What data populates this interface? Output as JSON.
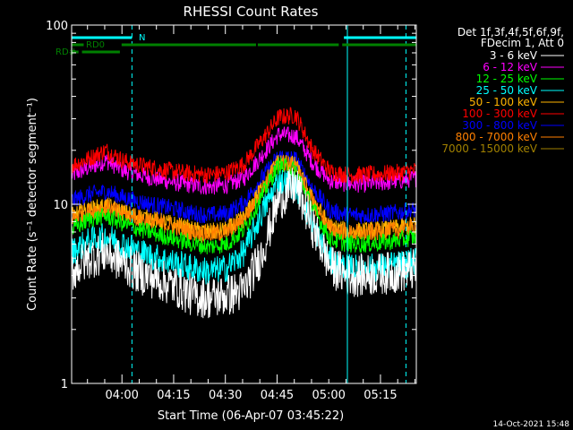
{
  "chart_data": {
    "type": "line",
    "title": "RHESSI Count Rates",
    "xlabel": "Start Time (06-Apr-07 03:45:22)",
    "ylabel": "Count Rate (s⁻¹ detector segment⁻¹)",
    "yscale": "log",
    "ylim": [
      1,
      100
    ],
    "xlim_minutes": [
      0,
      100
    ],
    "x_tick_labels": [
      "04:00",
      "04:15",
      "04:30",
      "04:45",
      "05:00",
      "05:15"
    ],
    "x_tick_minutes": [
      14.6,
      29.6,
      44.6,
      59.6,
      74.6,
      89.6
    ],
    "y_tick_labels": [
      "1",
      "10",
      "100"
    ],
    "y_tick_values": [
      1,
      10,
      100
    ],
    "legend": {
      "placement": "right",
      "header": [
        "Det 1f,3f,4f,5f,6f,9f,",
        "FDecim 1, Att 0"
      ]
    },
    "x_minutes": [
      0,
      5,
      10,
      15,
      20,
      25,
      30,
      35,
      40,
      45,
      50,
      55,
      60,
      65,
      70,
      75,
      80,
      85,
      90,
      95,
      100
    ],
    "series": [
      {
        "name": "3 - 6 keV",
        "color": "#ffffff",
        "values": [
          4.2,
          5.0,
          5.4,
          4.7,
          4.1,
          3.8,
          3.5,
          3.1,
          3.0,
          3.1,
          3.3,
          5.2,
          10.5,
          12.8,
          7.5,
          4.5,
          4.0,
          4.0,
          4.1,
          4.2,
          4.3
        ]
      },
      {
        "name": "6 - 12 keV",
        "color": "#ff00ff",
        "values": [
          14.5,
          16.0,
          17.5,
          15.5,
          14.5,
          13.8,
          13.2,
          12.8,
          12.5,
          12.8,
          14.0,
          18.5,
          24.5,
          24.0,
          17.0,
          13.5,
          13.0,
          13.0,
          13.2,
          13.5,
          14.0
        ]
      },
      {
        "name": "12 - 25 keV",
        "color": "#00ff00",
        "values": [
          7.2,
          8.2,
          8.6,
          7.8,
          7.2,
          6.8,
          6.4,
          6.0,
          5.8,
          6.0,
          7.2,
          11.0,
          16.5,
          15.5,
          9.5,
          6.4,
          6.0,
          6.0,
          6.1,
          6.3,
          6.6
        ]
      },
      {
        "name": "25 - 50 keV",
        "color": "#00ffff",
        "values": [
          5.4,
          6.2,
          6.6,
          6.0,
          5.4,
          5.0,
          4.7,
          4.4,
          4.2,
          4.4,
          5.4,
          8.8,
          13.5,
          12.8,
          7.6,
          4.8,
          4.4,
          4.4,
          4.5,
          4.6,
          4.8
        ]
      },
      {
        "name": "50 - 100 keV",
        "color": "#ffb400",
        "values": [
          8.6,
          9.3,
          9.8,
          9.0,
          8.5,
          8.1,
          7.7,
          7.2,
          7.0,
          7.2,
          8.4,
          12.2,
          17.5,
          16.5,
          10.5,
          7.5,
          7.1,
          7.1,
          7.2,
          7.4,
          7.7
        ]
      },
      {
        "name": "100 - 300 keV",
        "color": "#ff0000",
        "values": [
          16.5,
          18.0,
          20.0,
          17.5,
          16.5,
          15.8,
          15.2,
          14.8,
          14.6,
          15.0,
          16.8,
          22.5,
          30.5,
          31.5,
          20.0,
          15.2,
          14.6,
          14.6,
          14.8,
          15.0,
          15.5
        ]
      },
      {
        "name": "300 - 800 keV",
        "color": "#0000ff",
        "values": [
          10.5,
          11.3,
          11.8,
          10.9,
          10.3,
          9.8,
          9.4,
          8.9,
          8.7,
          8.9,
          10.2,
          13.8,
          18.5,
          17.8,
          12.2,
          9.2,
          8.7,
          8.7,
          8.8,
          9.0,
          9.3
        ]
      },
      {
        "name": "800 - 7000 keV",
        "color": "#ff8000",
        "values": [
          8.4,
          9.1,
          9.6,
          8.8,
          8.3,
          7.9,
          7.5,
          7.0,
          6.8,
          7.0,
          8.2,
          12.0,
          17.2,
          16.2,
          10.2,
          7.3,
          6.9,
          6.9,
          7.0,
          7.2,
          7.5
        ]
      },
      {
        "name": "7000 - 15000 keV",
        "color": "#a08000",
        "values": []
      }
    ],
    "attenuator_bars": [
      {
        "label": "N",
        "color": "#00ffff",
        "ranges": [
          [
            0,
            17.5
          ],
          [
            79,
            100
          ]
        ]
      },
      {
        "label": "RD0",
        "color": "#008000",
        "ranges": [
          [
            0,
            3.5
          ],
          [
            14.5,
            53.5
          ],
          [
            54,
            77.5
          ],
          [
            78.5,
            100
          ]
        ]
      },
      {
        "label": "RD#",
        "color": "#008000",
        "ranges": [
          [
            0,
            2
          ],
          [
            3,
            14
          ]
        ]
      }
    ],
    "vertical_markers_minutes": [
      17.5,
      80,
      97
    ]
  },
  "footer": {
    "timestamp": "14-Oct-2021 15:48"
  }
}
